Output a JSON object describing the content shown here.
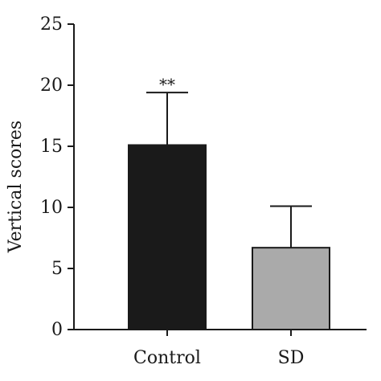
{
  "chart_data": {
    "type": "bar",
    "categories": [
      "Control",
      "SD"
    ],
    "values": [
      15.1,
      6.7
    ],
    "error_upper": [
      19.4,
      10.1
    ],
    "colors": [
      "#1a1a1a",
      "#aaaaaa"
    ],
    "significance": [
      "**",
      ""
    ],
    "title": "",
    "xlabel": "",
    "ylabel": "Vertical scores",
    "ylim": [
      0,
      25
    ],
    "yticks": [
      "0",
      "5",
      "10",
      "15",
      "20",
      "25"
    ],
    "grid": false,
    "legend": "none"
  }
}
